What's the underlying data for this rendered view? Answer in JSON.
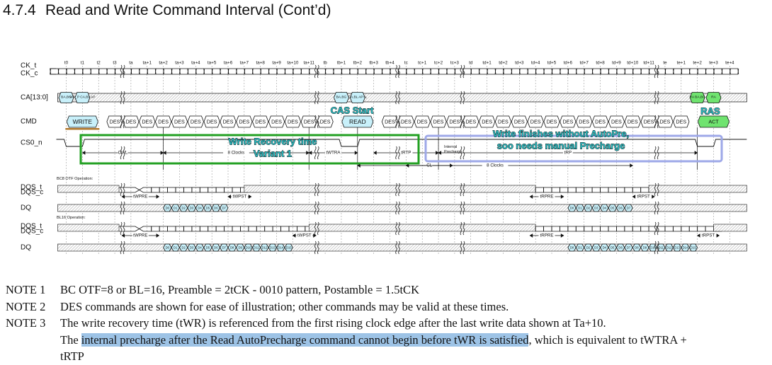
{
  "header": {
    "section": "4.7.4",
    "title": "Read and Write Command Interval (Cont’d)"
  },
  "signals": [
    "CK_t",
    "CK_c",
    "CA[13:0]",
    "CMD",
    "CS0_n",
    "DQS_t",
    "DQS_c",
    "DQ",
    "DQS_t",
    "DQS_c",
    "DQ"
  ],
  "clock_labels": [
    "t0",
    "t1",
    "t2",
    "t3",
    "ta",
    "ta+1",
    "ta+2",
    "ta+3",
    "ta+4",
    "ta+5",
    "ta+6",
    "ta+7",
    "ta+8",
    "ta+9",
    "ta+10",
    "ta+11",
    "tb",
    "tb+1",
    "tb+2",
    "tb+3",
    "tb+4",
    "tc",
    "tc+1",
    "tc+2",
    "tc+3",
    "td",
    "td+1",
    "td+2",
    "td+3",
    "td+4",
    "td+5",
    "td+6",
    "td+7",
    "td+8",
    "td+9",
    "td+10",
    "td+11",
    "te",
    "te+1",
    "te+2",
    "te+3",
    "te+4"
  ],
  "commands": {
    "write": "WRITE",
    "des": "DES",
    "read": "READ",
    "act": "ACT"
  },
  "ca_cells": {
    "write_bank": "BA,BG",
    "write_cabl": "WR_P CA,BL AP",
    "read_bank": "BA,BG",
    "read_cabl": "CA,BL AP=L",
    "act_bank": "RA BA,BG",
    "act_ra": "RA"
  },
  "operations": {
    "bc8": "BC8 OTF Operation:",
    "bl16": "BL16 Operation:"
  },
  "timing_labels": {
    "cwl": "CWL",
    "eight_clocks": "8 Clocks",
    "twtra": "tWTRA",
    "trtp": "tRTP",
    "internal_precharge": "Internal Precharge",
    "trp": "tRP",
    "cl": "CL",
    "eight_clocks_2": "8 Clocks",
    "twpre": "tWPRE",
    "twpst": "tWPST",
    "trpre": "tRPRE",
    "trpst": "tRPST"
  },
  "dq_bursts": {
    "bc8_write": [
      "D0",
      "D1",
      "D2",
      "D3",
      "D4",
      "D5",
      "D6",
      "D7"
    ],
    "bc8_read": [
      "D0",
      "D1",
      "D2",
      "D3",
      "D4",
      "D5",
      "D6",
      "D7"
    ],
    "bl16_write": [
      "D0",
      "D1",
      "D2",
      "D3",
      "D4",
      "D5",
      "D6",
      "D7",
      "D8",
      "D9",
      "D10",
      "D11",
      "D12",
      "D13",
      "D14",
      "D15"
    ],
    "bl16_read": [
      "D0",
      "D1",
      "D2",
      "D3",
      "D4",
      "D5",
      "D6",
      "D7",
      "D8",
      "D9",
      "D10",
      "D11",
      "D12",
      "D13",
      "D14",
      "D15"
    ]
  },
  "annotations": {
    "cas_start": "CAS Start",
    "ras": "RAS",
    "write_recovery_1": "Write Recovery time",
    "write_recovery_2": "Variant 1",
    "write_finishes_1": "Write finishes without AutoPre,",
    "write_finishes_2": "soo needs manual Precharge"
  },
  "colors": {
    "green_box": "#22a022",
    "blue_box": "#9ea8e8",
    "cyan_cmd": "#c8f0fa",
    "green_cmd": "#6fe36f",
    "teal_text": "#2bbcc2",
    "hatch": "#b4b4b4",
    "underline": "#b27a2e",
    "highlight": "#9dc3e6"
  },
  "notes": [
    {
      "label": "NOTE 1",
      "text": "BC OTF=8 or BL=16, Preamble = 2tCK - 0010 pattern, Postamble = 1.5tCK"
    },
    {
      "label": "NOTE 2",
      "text": "DES commands are shown for ease of illustration; other commands may be valid at these times."
    },
    {
      "label": "NOTE 3",
      "text": "The write recovery time (tWR) is referenced from the first rising clock edge after the last write data shown at Ta+10."
    }
  ],
  "note3_cont": {
    "pre": "The ",
    "highlight": "internal precharge after the Read AutoPrecharge command cannot begin before tWR is satisfied",
    "post": ", which is equivalent to tWTRA +",
    "line2": "tRTP"
  }
}
